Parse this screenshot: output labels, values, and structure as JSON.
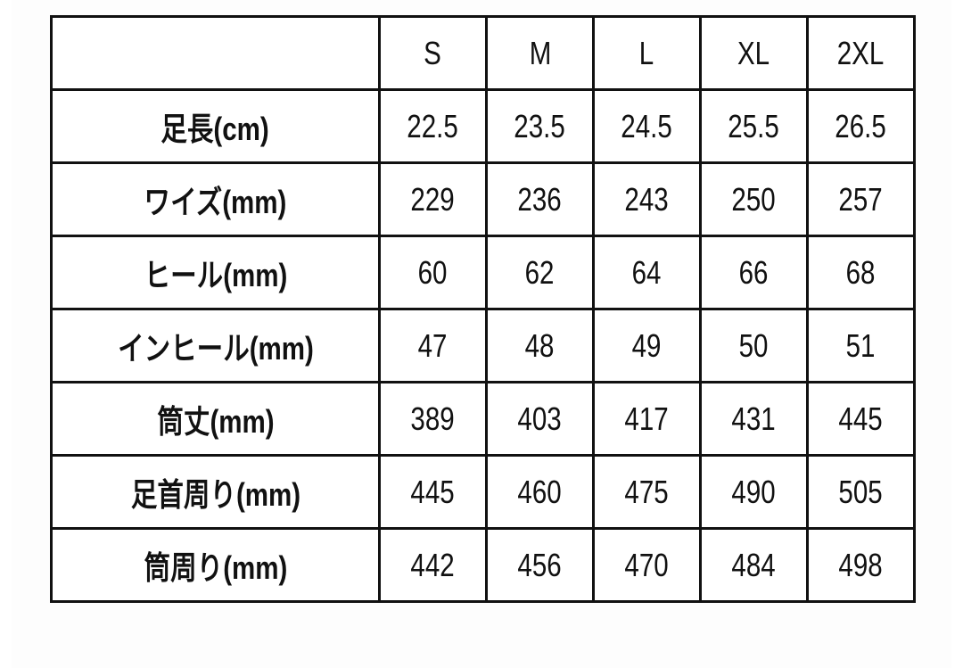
{
  "table": {
    "headers": [
      "",
      "S",
      "M",
      "L",
      "XL",
      "2XL"
    ],
    "rows": [
      {
        "label": "足長(cm)",
        "values": [
          "22.5",
          "23.5",
          "24.5",
          "25.5",
          "26.5"
        ]
      },
      {
        "label": "ワイズ(mm)",
        "values": [
          "229",
          "236",
          "243",
          "250",
          "257"
        ]
      },
      {
        "label": "ヒール(mm)",
        "values": [
          "60",
          "62",
          "64",
          "66",
          "68"
        ]
      },
      {
        "label": "インヒール(mm)",
        "values": [
          "47",
          "48",
          "49",
          "50",
          "51"
        ]
      },
      {
        "label": "筒丈(mm)",
        "values": [
          "389",
          "403",
          "417",
          "431",
          "445"
        ]
      },
      {
        "label": "足首周り(mm)",
        "values": [
          "445",
          "460",
          "475",
          "490",
          "505"
        ]
      },
      {
        "label": "筒周り(mm)",
        "values": [
          "442",
          "456",
          "470",
          "484",
          "498"
        ]
      }
    ]
  }
}
